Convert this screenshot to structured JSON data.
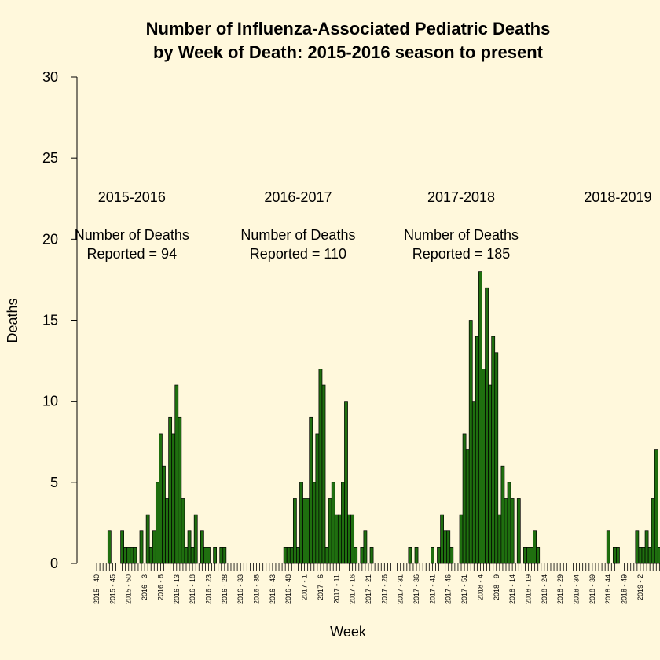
{
  "chart_data": {
    "type": "bar",
    "title_line1": "Number of Influenza-Associated Pediatric Deaths",
    "title_line2": "by Week of Death: 2015-2016 season to present",
    "xlabel": "Week",
    "ylabel": "Deaths",
    "ylim": [
      0,
      30
    ],
    "yticks": [
      0,
      5,
      10,
      15,
      20,
      25,
      30
    ],
    "bar_color": "#1F6F0F",
    "background": "#FFF8DC",
    "x_tick_labels": [
      "2015 - 40",
      "2015 - 45",
      "2015 - 50",
      "2016 - 3",
      "2016 - 8",
      "2016 - 13",
      "2016 - 18",
      "2016 - 23",
      "2016 - 28",
      "2016 - 33",
      "2016 - 38",
      "2016 - 43",
      "2016 - 48",
      "2017 - 1",
      "2017 - 6",
      "2017 - 11",
      "2017 - 16",
      "2017 - 21",
      "2017 - 26",
      "2017 - 31",
      "2017 - 36",
      "2017 - 41",
      "2017 - 46",
      "2017 - 51",
      "2018 - 4",
      "2018 - 9",
      "2018 - 14",
      "2018 - 19",
      "2018 - 24",
      "2018 - 29",
      "2018 - 34",
      "2018 - 39",
      "2018 - 44",
      "2018 - 49",
      "2019 - 2"
    ],
    "label_every": 5,
    "values": [
      0,
      0,
      0,
      0,
      2,
      0,
      0,
      0,
      2,
      1,
      1,
      1,
      1,
      0,
      2,
      0,
      3,
      1,
      2,
      5,
      8,
      6,
      4,
      9,
      8,
      11,
      9,
      4,
      1,
      2,
      1,
      3,
      0,
      2,
      1,
      1,
      0,
      1,
      0,
      1,
      1,
      0,
      0,
      0,
      0,
      0,
      0,
      0,
      0,
      0,
      0,
      0,
      0,
      0,
      0,
      0,
      0,
      0,
      0,
      1,
      1,
      1,
      4,
      1,
      5,
      4,
      4,
      9,
      5,
      8,
      12,
      11,
      1,
      4,
      5,
      3,
      3,
      5,
      10,
      3,
      3,
      1,
      0,
      1,
      2,
      0,
      1,
      0,
      0,
      0,
      0,
      0,
      0,
      0,
      0,
      0,
      0,
      0,
      1,
      0,
      1,
      0,
      0,
      0,
      0,
      1,
      0,
      1,
      3,
      2,
      2,
      1,
      0,
      0,
      3,
      8,
      7,
      15,
      10,
      14,
      18,
      12,
      17,
      11,
      14,
      13,
      3,
      6,
      4,
      5,
      4,
      0,
      4,
      0,
      1,
      1,
      1,
      2,
      1,
      0,
      0,
      0,
      0,
      0,
      0,
      0,
      0,
      0,
      0,
      0,
      0,
      0,
      0,
      0,
      0,
      0,
      0,
      0,
      0,
      0,
      2,
      0,
      1,
      1,
      0,
      0,
      0,
      0,
      0,
      2,
      1,
      1,
      2,
      1,
      4,
      7,
      1,
      3,
      2,
      3
    ],
    "annotations": [
      {
        "season": "2015-2016",
        "line1": "Number of Deaths",
        "line2": "Reported = 94",
        "center_week": 11
      },
      {
        "season": "2016-2017",
        "line1": "Number of Deaths",
        "line2": "Reported = 110",
        "center_week": 63
      },
      {
        "season": "2017-2018",
        "line1": "Number of Deaths",
        "line2": "Reported = 185",
        "center_week": 114
      },
      {
        "season": "2018-2019",
        "line1": "",
        "line2": "",
        "center_week": 163
      }
    ]
  }
}
